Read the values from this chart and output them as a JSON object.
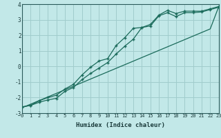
{
  "title": "",
  "xlabel": "Humidex (Indice chaleur)",
  "ylabel": "",
  "bg_color": "#c2e8e8",
  "grid_color": "#a0cccc",
  "line_color": "#1a6a5a",
  "xlim": [
    0,
    23
  ],
  "ylim": [
    -3.0,
    4.0
  ],
  "xticks": [
    0,
    1,
    2,
    3,
    4,
    5,
    6,
    7,
    8,
    9,
    10,
    11,
    12,
    13,
    14,
    15,
    16,
    17,
    18,
    19,
    20,
    21,
    22,
    23
  ],
  "yticks": [
    -3,
    -2,
    -1,
    0,
    1,
    2,
    3,
    4
  ],
  "x_data": [
    0,
    1,
    2,
    3,
    4,
    5,
    6,
    7,
    8,
    9,
    10,
    11,
    12,
    13,
    14,
    15,
    16,
    17,
    18,
    19,
    20,
    21,
    22,
    23
  ],
  "y_curve1": [
    -2.6,
    -2.5,
    -2.2,
    -2.0,
    -1.85,
    -1.45,
    -1.15,
    -0.55,
    -0.05,
    0.35,
    0.5,
    1.35,
    1.85,
    2.45,
    2.5,
    2.6,
    3.25,
    3.45,
    3.2,
    3.45,
    3.45,
    3.5,
    3.65,
    3.8
  ],
  "y_curve2": [
    -2.6,
    -2.5,
    -2.3,
    -2.15,
    -2.05,
    -1.6,
    -1.35,
    -0.85,
    -0.45,
    -0.1,
    0.25,
    0.8,
    1.3,
    1.75,
    2.5,
    2.7,
    3.3,
    3.6,
    3.4,
    3.55,
    3.55,
    3.55,
    3.7,
    3.85
  ],
  "y_line": [
    -2.65,
    -2.42,
    -2.19,
    -1.96,
    -1.73,
    -1.5,
    -1.27,
    -1.04,
    -0.81,
    -0.58,
    -0.35,
    -0.12,
    0.11,
    0.34,
    0.57,
    0.8,
    1.03,
    1.26,
    1.49,
    1.72,
    1.95,
    2.18,
    2.41,
    3.85
  ]
}
